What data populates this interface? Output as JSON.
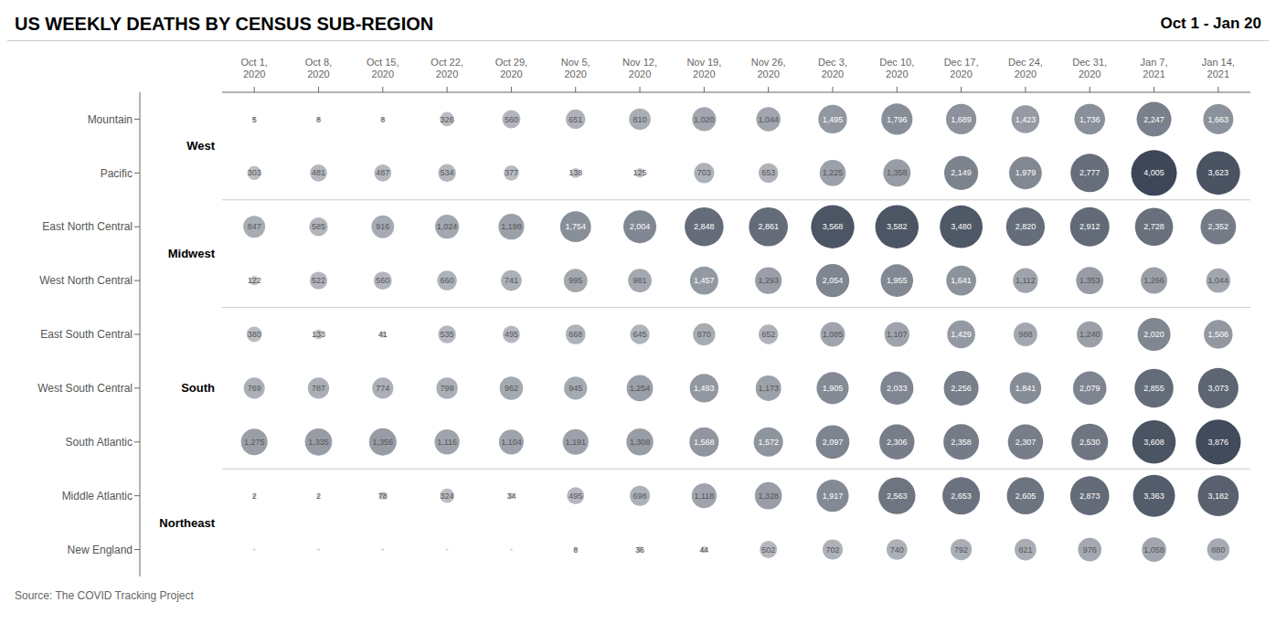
{
  "chart_data": {
    "type": "bubble",
    "title": "US WEEKLY DEATHS BY CENSUS SUB-REGION",
    "subtitle": "Oct 1 - Jan 20",
    "annotations": [
      "Source: The COVID Tracking Project"
    ],
    "categories": [
      "Oct 1,\n2020",
      "Oct 8,\n2020",
      "Oct 15,\n2020",
      "Oct 22,\n2020",
      "Oct 29,\n2020",
      "Nov 5,\n2020",
      "Nov 12,\n2020",
      "Nov 19,\n2020",
      "Nov 26,\n2020",
      "Dec 3,\n2020",
      "Dec 10,\n2020",
      "Dec 17,\n2020",
      "Dec 24,\n2020",
      "Dec 31,\n2020",
      "Jan 7,\n2021",
      "Jan 14,\n2021"
    ],
    "groups": [
      {
        "name": "West",
        "rows": [
          "Mountain",
          "Pacific"
        ]
      },
      {
        "name": "Midwest",
        "rows": [
          "East North Central",
          "West North Central"
        ]
      },
      {
        "name": "South",
        "rows": [
          "East South Central",
          "West South Central",
          "South Atlantic"
        ]
      },
      {
        "name": "Northeast",
        "rows": [
          "Middle Atlantic",
          "New England"
        ]
      }
    ],
    "series": [
      {
        "name": "Mountain",
        "values": [
          5,
          8,
          8,
          326,
          560,
          651,
          810,
          1020,
          1044,
          1495,
          1796,
          1689,
          1423,
          1736,
          2247,
          1663
        ],
        "value_labels": [
          "5",
          "8",
          "8",
          "326",
          "560",
          "651",
          "810",
          "1,020",
          "1,044",
          "1,495",
          "1,796",
          "1,689",
          "1,423",
          "1,736",
          "2,247",
          "1,663"
        ]
      },
      {
        "name": "Pacific",
        "values": [
          303,
          481,
          487,
          534,
          377,
          138,
          125,
          703,
          653,
          1225,
          1358,
          2149,
          1979,
          2777,
          4005,
          3623
        ],
        "value_labels": [
          "303",
          "481",
          "487",
          "534",
          "377",
          "138",
          "125",
          "703",
          "653",
          "1,225",
          "1,358",
          "2,149",
          "1,979",
          "2,777",
          "4,005",
          "3,623"
        ]
      },
      {
        "name": "East North Central",
        "values": [
          847,
          585,
          916,
          1024,
          1198,
          1754,
          2004,
          2848,
          2861,
          3568,
          3582,
          3480,
          2820,
          2912,
          2728,
          2352
        ],
        "value_labels": [
          "847",
          "585",
          "916",
          "1,024",
          "1,198",
          "1,754",
          "2,004",
          "2,848",
          "2,861",
          "3,568",
          "3,582",
          "3,480",
          "2,820",
          "2,912",
          "2,728",
          "2,352"
        ]
      },
      {
        "name": "West North Central",
        "values": [
          122,
          522,
          560,
          660,
          741,
          995,
          981,
          1457,
          1293,
          2054,
          1955,
          1641,
          1112,
          1353,
          1266,
          1044
        ],
        "value_labels": [
          "122",
          "522",
          "560",
          "660",
          "741",
          "995",
          "981",
          "1,457",
          "1,293",
          "2,054",
          "1,955",
          "1,641",
          "1,112",
          "1,353",
          "1,266",
          "1,044"
        ]
      },
      {
        "name": "East South Central",
        "values": [
          380,
          133,
          41,
          535,
          495,
          668,
          645,
          870,
          652,
          1085,
          1107,
          1429,
          988,
          1240,
          2020,
          1506
        ],
        "value_labels": [
          "380",
          "133",
          "41",
          "535",
          "495",
          "668",
          "645",
          "870",
          "652",
          "1,085",
          "1,107",
          "1,429",
          "988",
          "1,240",
          "2,020",
          "1,506"
        ]
      },
      {
        "name": "West South Central",
        "values": [
          769,
          787,
          774,
          799,
          962,
          945,
          1254,
          1493,
          1173,
          1905,
          2033,
          2256,
          1841,
          2079,
          2855,
          3073
        ],
        "value_labels": [
          "769",
          "787",
          "774",
          "799",
          "962",
          "945",
          "1,254",
          "1,493",
          "1,173",
          "1,905",
          "2,033",
          "2,256",
          "1,841",
          "2,079",
          "2,855",
          "3,073"
        ]
      },
      {
        "name": "South Atlantic",
        "values": [
          1275,
          1335,
          1356,
          1116,
          1104,
          1191,
          1308,
          1568,
          1572,
          2097,
          2306,
          2358,
          2307,
          2530,
          3608,
          3876
        ],
        "value_labels": [
          "1,275",
          "1,335",
          "1,356",
          "1,116",
          "1,104",
          "1,191",
          "1,308",
          "1,568",
          "1,572",
          "2,097",
          "2,306",
          "2,358",
          "2,307",
          "2,530",
          "3,608",
          "3,876"
        ]
      },
      {
        "name": "Middle Atlantic",
        "values": [
          2,
          2,
          78,
          324,
          34,
          495,
          698,
          1118,
          1328,
          1917,
          2563,
          2653,
          2605,
          2873,
          3363,
          3182
        ],
        "value_labels": [
          "2",
          "2",
          "78",
          "324",
          "34",
          "495",
          "698",
          "1,118",
          "1,328",
          "1,917",
          "2,563",
          "2,653",
          "2,605",
          "2,873",
          "3,363",
          "3,182"
        ]
      },
      {
        "name": "New England",
        "values": [
          0,
          0,
          0,
          0,
          0,
          8,
          36,
          44,
          502,
          702,
          740,
          792,
          821,
          976,
          1058,
          880
        ],
        "value_labels": [
          null,
          null,
          null,
          null,
          null,
          "8",
          "36",
          "44",
          "502",
          "702",
          "740",
          "792",
          "821",
          "976",
          "1,058",
          "880"
        ]
      }
    ],
    "color": "#3d4757",
    "data_labels": true,
    "grid": false
  }
}
